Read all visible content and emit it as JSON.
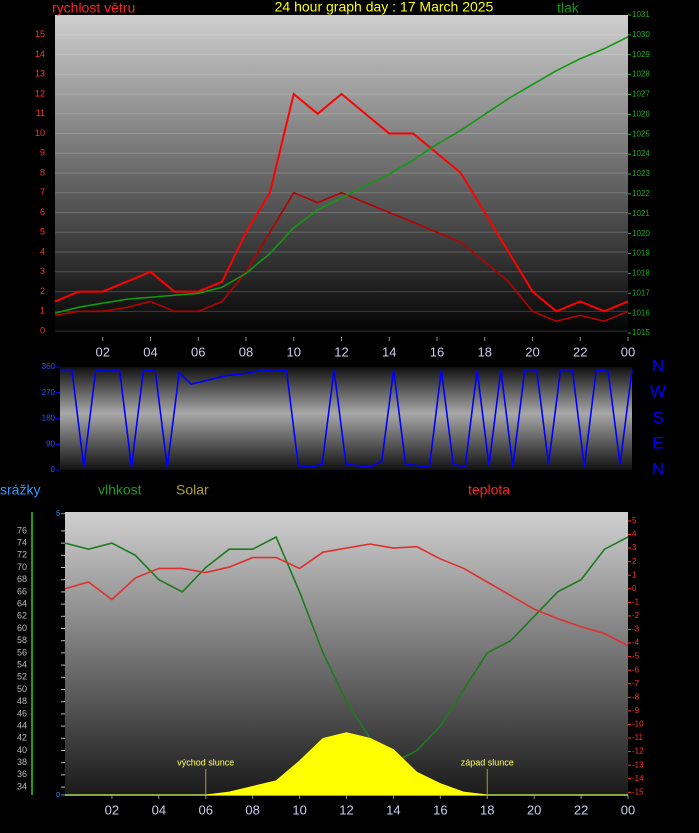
{
  "chart_data": [
    {
      "type": "line",
      "title": "24 hour graph day : 17 March 2025",
      "x": [
        0,
        1,
        2,
        3,
        4,
        5,
        6,
        7,
        8,
        9,
        10,
        11,
        12,
        13,
        14,
        15,
        16,
        17,
        18,
        19,
        20,
        21,
        22,
        23,
        24
      ],
      "xlim": [
        0,
        24
      ],
      "xticks": [
        {
          "value": 2,
          "label": "02"
        },
        {
          "value": 4,
          "label": "04"
        },
        {
          "value": 6,
          "label": "06"
        },
        {
          "value": 8,
          "label": "08"
        },
        10,
        12,
        14,
        16,
        18,
        20,
        22,
        {
          "value": 24,
          "label": "00"
        }
      ],
      "ylim": [
        -0.3,
        16
      ],
      "yticks": [
        0,
        1,
        2,
        3,
        4,
        5,
        6,
        7,
        8,
        9,
        10,
        11,
        12,
        13,
        14,
        15
      ],
      "y2lim": [
        1014.8,
        1031
      ],
      "y2ticks": [
        1015,
        1016,
        1017,
        1018,
        1019,
        1020,
        1021,
        1022,
        1023,
        1024,
        1025,
        1026,
        1027,
        1028,
        1029,
        1030,
        1031
      ],
      "grid": true,
      "series": [
        {
          "name": "rychlost větru",
          "color": "#ff0000",
          "values": [
            1.5,
            2,
            2,
            2.5,
            3,
            2,
            2,
            2.5,
            5,
            7,
            12,
            11,
            12,
            11,
            10,
            10,
            9,
            8,
            6,
            4,
            2,
            1,
            1.5,
            1,
            1.5
          ]
        },
        {
          "color": "#b80000",
          "values": [
            0.8,
            1,
            1,
            1.2,
            1.5,
            1,
            1,
            1.5,
            3,
            5,
            7,
            6.5,
            7,
            6.5,
            6,
            5.5,
            5,
            4.5,
            3.5,
            2.5,
            1,
            0.5,
            0.8,
            0.5,
            1
          ]
        },
        {
          "name": "tlak",
          "color": "#119911",
          "axis": "y2",
          "values": [
            1016,
            1016.3,
            1016.5,
            1016.7,
            1016.8,
            1016.9,
            1017,
            1017.3,
            1018,
            1019,
            1020.3,
            1021.2,
            1021.8,
            1022.4,
            1023,
            1023.7,
            1024.5,
            1025.2,
            1026,
            1026.8,
            1027.5,
            1028.2,
            1028.8,
            1029.3,
            1029.9
          ]
        }
      ]
    },
    {
      "type": "line",
      "x": [
        0,
        0.5,
        1,
        1.5,
        2,
        2.5,
        3,
        3.5,
        4,
        4.5,
        5,
        5.5,
        6,
        6.5,
        7,
        7.5,
        8,
        8.5,
        9,
        9.5,
        10,
        10.5,
        11,
        11.5,
        12,
        12.5,
        13,
        13.5,
        14,
        14.5,
        15,
        15.5,
        16,
        16.5,
        17,
        17.5,
        18,
        18.5,
        19,
        19.5,
        20,
        20.5,
        21,
        21.5,
        22,
        22.5,
        23,
        23.5,
        24
      ],
      "xlim": [
        0,
        24
      ],
      "ylim": [
        0,
        360
      ],
      "yticks": [
        0,
        90,
        180,
        270,
        360
      ],
      "compass_ticks": [
        {
          "value": 360,
          "label": "N"
        },
        {
          "value": 270,
          "label": "W"
        },
        {
          "value": 180,
          "label": "S"
        },
        {
          "value": 90,
          "label": "E"
        },
        {
          "value": 0,
          "label": "N"
        }
      ],
      "series": [
        {
          "color": "#0000ff",
          "values": [
            350,
            350,
            10,
            350,
            345,
            350,
            10,
            350,
            345,
            10,
            340,
            300,
            310,
            320,
            330,
            335,
            340,
            350,
            345,
            350,
            15,
            10,
            20,
            350,
            20,
            15,
            10,
            30,
            350,
            20,
            15,
            10,
            350,
            20,
            10,
            350,
            15,
            350,
            10,
            350,
            350,
            20,
            350,
            350,
            10,
            350,
            345,
            20,
            350
          ]
        }
      ]
    },
    {
      "type": "line",
      "x": [
        0,
        1,
        2,
        3,
        4,
        5,
        6,
        7,
        8,
        9,
        10,
        11,
        12,
        13,
        14,
        15,
        16,
        17,
        18,
        19,
        20,
        21,
        22,
        23,
        24
      ],
      "xlim": [
        0,
        24
      ],
      "xticks": [
        {
          "value": 2,
          "label": "02"
        },
        {
          "value": 4,
          "label": "04"
        },
        {
          "value": 6,
          "label": "06"
        },
        {
          "value": 8,
          "label": "08"
        },
        10,
        12,
        14,
        16,
        18,
        20,
        22,
        {
          "value": 24,
          "label": "00"
        }
      ],
      "ylim": [
        32.7,
        79.1
      ],
      "yticks": [
        34,
        36,
        38,
        40,
        42,
        44,
        46,
        48,
        50,
        52,
        54,
        56,
        58,
        60,
        62,
        64,
        66,
        68,
        70,
        72,
        74,
        76
      ],
      "y2lim": [
        -15.2,
        5.66
      ],
      "y2ticks": [
        -15,
        -14,
        -13,
        -12,
        -11,
        -10,
        -9,
        -8,
        -7,
        -6,
        -5,
        -4,
        -3,
        -2,
        -1,
        0,
        1,
        2,
        3,
        4,
        5
      ],
      "y3lim": [
        0,
        5.03
      ],
      "y3ticks": [
        0,
        5
      ],
      "solar_lim": [
        0,
        100
      ],
      "series": [
        {
          "name": "srážky",
          "color": "#1e90ff",
          "axis": "y3",
          "values": [
            0,
            0,
            0,
            0,
            0,
            0,
            0,
            0,
            0,
            0,
            0,
            0,
            0,
            0,
            0,
            0,
            0,
            0,
            0,
            0,
            0,
            0,
            0,
            0,
            0
          ]
        },
        {
          "name": "vlhkost",
          "color": "#1f7a1f",
          "values": [
            74,
            73,
            74,
            72,
            68,
            66,
            70,
            73,
            73,
            75,
            66,
            56,
            48,
            42,
            38,
            40,
            44,
            50,
            56,
            58,
            62,
            66,
            68,
            73,
            75
          ]
        },
        {
          "name": "Solar",
          "color": "#ffff00",
          "axis": "solar",
          "values": [
            0,
            0,
            0,
            0,
            0,
            0,
            0,
            1,
            3,
            5,
            12,
            20,
            22,
            20,
            16,
            8,
            4,
            1,
            0,
            0,
            0,
            0,
            0,
            0,
            0
          ]
        },
        {
          "name": "teplota",
          "color": "#e03030",
          "axis": "y2",
          "values": [
            0,
            0.5,
            -0.8,
            0.8,
            1.5,
            1.5,
            1.2,
            1.6,
            2.3,
            2.3,
            1.5,
            2.7,
            3,
            3.3,
            3,
            3.1,
            2.2,
            1.5,
            0.5,
            -0.5,
            -1.5,
            -2.2,
            -2.8,
            -3.3,
            -4.2
          ]
        }
      ],
      "annotations": [
        {
          "text": "východ slunce",
          "x": 6
        },
        {
          "text": "západ slunce",
          "x": 18
        }
      ]
    }
  ]
}
